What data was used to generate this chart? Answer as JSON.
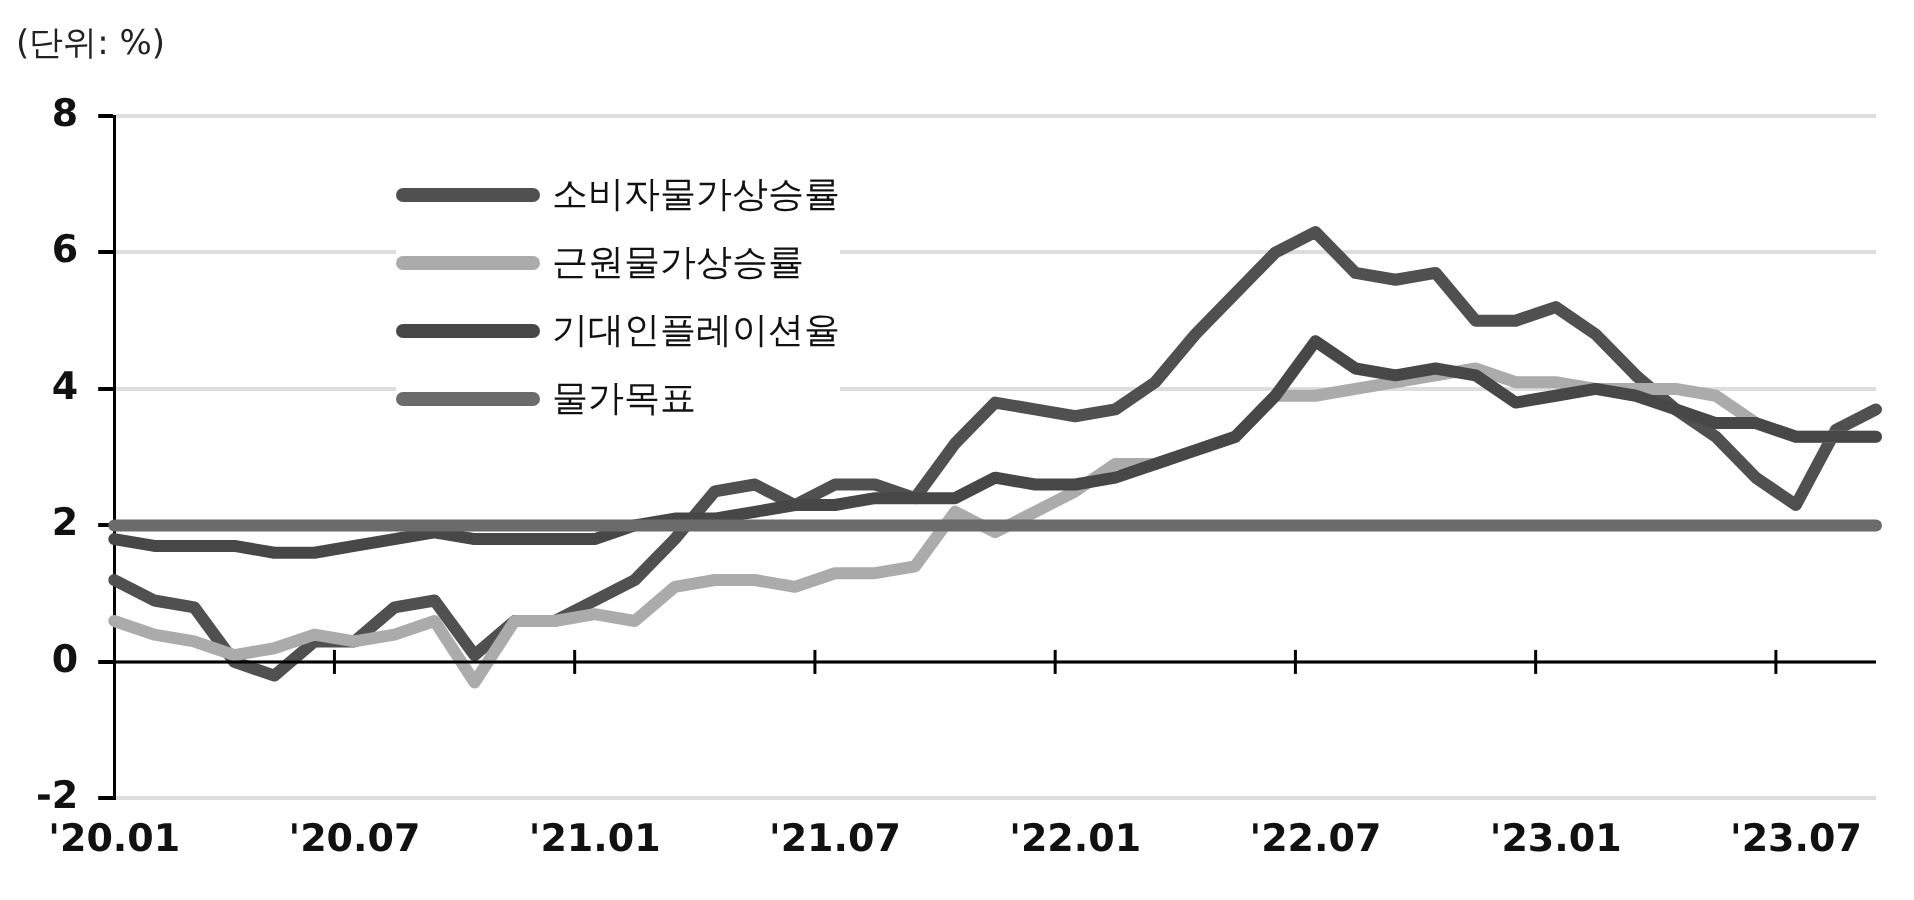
{
  "chart_data": {
    "type": "line",
    "categories": [
      "'20.01",
      null,
      null,
      null,
      null,
      null,
      "'20.07",
      null,
      null,
      null,
      null,
      null,
      "'21.01",
      null,
      null,
      null,
      null,
      null,
      "'21.07",
      null,
      null,
      null,
      null,
      null,
      "'22.01",
      null,
      null,
      null,
      null,
      null,
      "'22.07",
      null,
      null,
      null,
      null,
      null,
      "'23.01",
      null,
      null,
      null,
      null,
      null,
      "'23.07",
      null,
      null
    ],
    "series": [
      {
        "name": "소비자물가상승률",
        "color": "#505050",
        "values": [
          1.2,
          0.9,
          0.8,
          0.0,
          -0.2,
          0.3,
          0.3,
          0.8,
          0.9,
          0.1,
          0.6,
          0.6,
          0.9,
          1.2,
          1.8,
          2.5,
          2.6,
          2.3,
          2.6,
          2.6,
          2.4,
          3.2,
          3.8,
          3.7,
          3.6,
          3.7,
          4.1,
          4.8,
          5.4,
          6.0,
          6.3,
          5.7,
          5.6,
          5.7,
          5.0,
          5.0,
          5.2,
          4.8,
          4.2,
          3.7,
          3.3,
          2.7,
          2.3,
          3.4,
          3.7
        ]
      },
      {
        "name": "근원물가상승률",
        "color": "#ababab",
        "values": [
          0.6,
          0.4,
          0.3,
          0.1,
          0.2,
          0.4,
          0.3,
          0.4,
          0.6,
          -0.3,
          0.6,
          0.6,
          0.7,
          0.6,
          1.1,
          1.2,
          1.2,
          1.1,
          1.3,
          1.3,
          1.4,
          2.2,
          1.9,
          2.2,
          2.5,
          2.9,
          2.9,
          3.1,
          3.3,
          3.9,
          3.9,
          4.0,
          4.1,
          4.2,
          4.3,
          4.1,
          4.1,
          4.0,
          4.0,
          4.0,
          3.9,
          3.5,
          3.3,
          3.3,
          3.3
        ]
      },
      {
        "name": "기대인플레이션율",
        "color": "#474747",
        "values": [
          1.8,
          1.7,
          1.7,
          1.7,
          1.6,
          1.6,
          1.7,
          1.8,
          1.9,
          1.8,
          1.8,
          1.8,
          1.8,
          2.0,
          2.1,
          2.1,
          2.2,
          2.3,
          2.3,
          2.4,
          2.4,
          2.4,
          2.7,
          2.6,
          2.6,
          2.7,
          2.9,
          3.1,
          3.3,
          3.9,
          4.7,
          4.3,
          4.2,
          4.3,
          4.2,
          3.8,
          3.9,
          4.0,
          3.9,
          3.7,
          3.5,
          3.5,
          3.3,
          3.3,
          3.3
        ]
      },
      {
        "name": "물가목표",
        "color": "#6b6b6b",
        "values": [
          2,
          2,
          2,
          2,
          2,
          2,
          2,
          2,
          2,
          2,
          2,
          2,
          2,
          2,
          2,
          2,
          2,
          2,
          2,
          2,
          2,
          2,
          2,
          2,
          2,
          2,
          2,
          2,
          2,
          2,
          2,
          2,
          2,
          2,
          2,
          2,
          2,
          2,
          2,
          2,
          2,
          2,
          2,
          2,
          2
        ]
      }
    ],
    "ylim": [
      -2,
      8
    ],
    "yticks": [
      -2,
      0,
      2,
      4,
      6,
      8
    ],
    "grid": "y",
    "legend": "top left",
    "marker": "none",
    "line_style": "solid",
    "annotations": [
      "(단위: %)"
    ]
  }
}
